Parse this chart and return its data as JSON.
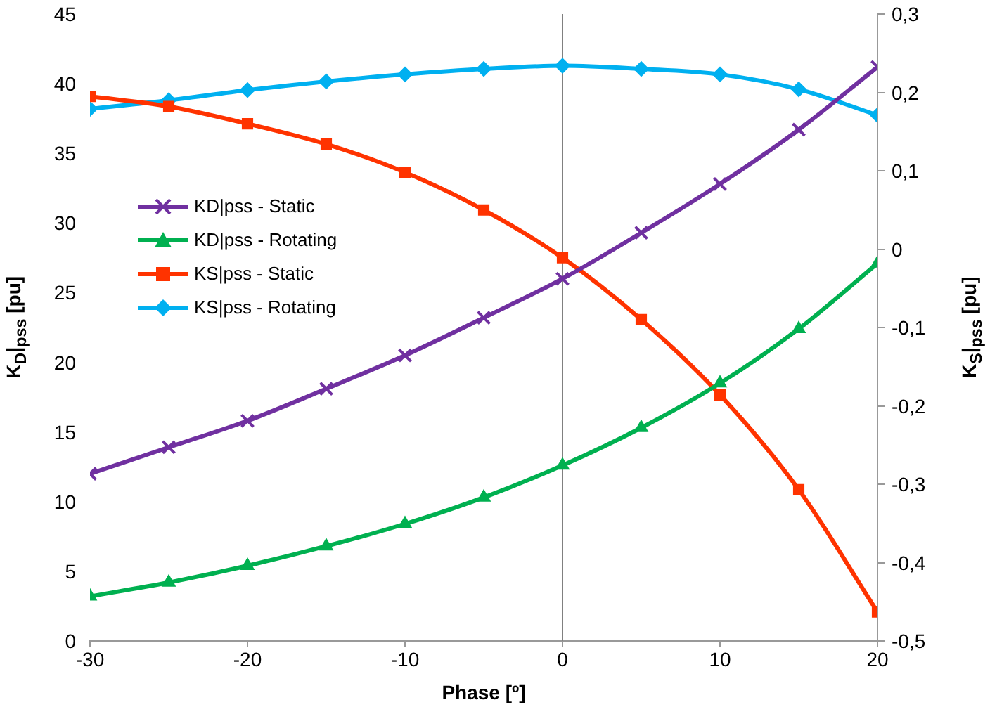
{
  "chart_data": {
    "type": "line",
    "xlabel": "Phase [º]",
    "ylabel": "K$_{D}$|$_{pss}$ [pu]",
    "y2label": "K$_{S}$|$_{pss}$ [pu]",
    "x": [
      -30,
      -25,
      -20,
      -15,
      -10,
      -5,
      0,
      5,
      10,
      15,
      20
    ],
    "xlim": [
      -30,
      20
    ],
    "xticks": [
      -30,
      -20,
      -10,
      0,
      10,
      20
    ],
    "ylim": [
      0,
      45
    ],
    "yticks": [
      0,
      5,
      10,
      15,
      20,
      25,
      30,
      35,
      40,
      45
    ],
    "y2lim": [
      -0.5,
      0.3
    ],
    "y2ticks": [
      {
        "value": -0.5,
        "label": "-0,5"
      },
      {
        "value": -0.4,
        "label": "-0,4"
      },
      {
        "value": -0.3,
        "label": "-0,3"
      },
      {
        "value": -0.2,
        "label": "-0,2"
      },
      {
        "value": -0.1,
        "label": "-0,1"
      },
      0,
      {
        "value": 0.1,
        "label": "0,1"
      },
      {
        "value": 0.2,
        "label": "0,2"
      },
      {
        "value": 0.3,
        "label": "0,3"
      }
    ],
    "series": [
      {
        "name": "KD|pss - Static",
        "color": "#7030a0",
        "marker": "cross",
        "values": [
          12.0,
          13.9,
          15.8,
          18.1,
          20.5,
          23.2,
          26.0,
          29.3,
          32.8,
          36.7,
          41.2
        ]
      },
      {
        "name": "KD|pss - Rotating",
        "color": "#00b050",
        "marker": "triangle",
        "values": [
          3.2,
          4.2,
          5.4,
          6.8,
          8.4,
          10.3,
          12.6,
          15.3,
          18.5,
          22.4,
          27.1
        ]
      },
      {
        "name": "KS|pss - Static",
        "color": "#ff3300",
        "marker": "square",
        "axis": "y2",
        "values": [
          0.195,
          0.182,
          0.16,
          0.134,
          0.098,
          0.05,
          -0.011,
          -0.09,
          -0.186,
          -0.307,
          -0.463
        ]
      },
      {
        "name": "KS|pss - Rotating",
        "color": "#00b0f0",
        "marker": "diamond",
        "axis": "y2",
        "values": [
          0.179,
          0.19,
          0.203,
          0.214,
          0.223,
          0.23,
          0.234,
          0.23,
          0.223,
          0.204,
          0.171
        ]
      }
    ],
    "ref_lines": [
      {
        "axis": "x",
        "value": 0,
        "color": "#808080"
      }
    ],
    "grid": false,
    "legend": "left"
  }
}
